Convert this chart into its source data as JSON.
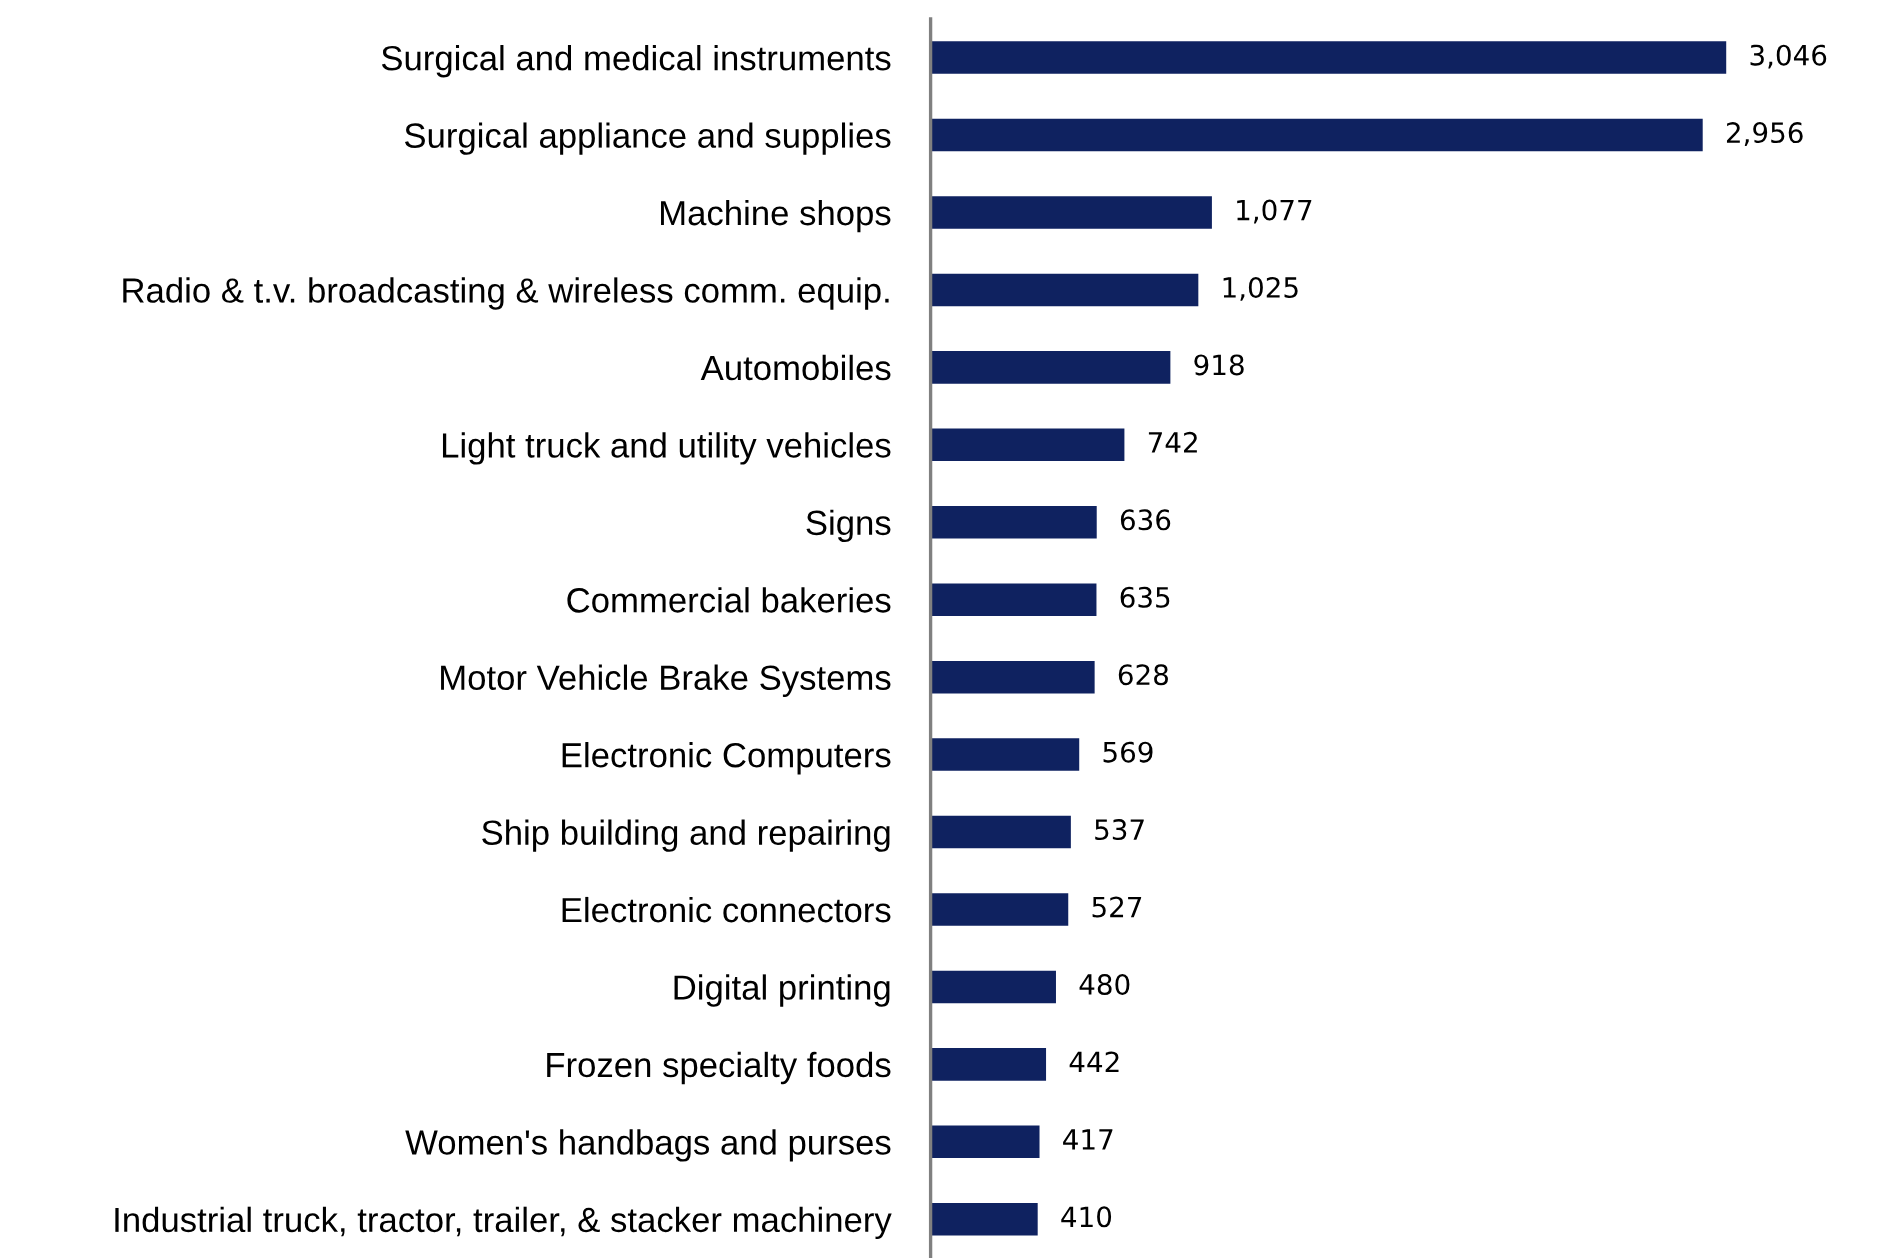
{
  "chart_data": {
    "type": "bar",
    "orientation": "horizontal",
    "categories": [
      "Surgical and medical instruments",
      "Surgical appliance and supplies",
      "Machine shops",
      "Radio & t.v. broadcasting & wireless comm. equip.",
      "Automobiles",
      "Light truck and utility vehicles",
      "Signs",
      "Commercial bakeries",
      "Motor Vehicle Brake Systems",
      "Electronic Computers",
      "Ship building and repairing",
      "Electronic connectors",
      "Digital printing",
      "Frozen specialty foods",
      "Women's handbags and purses",
      "Industrial truck, tractor, trailer, & stacker machinery"
    ],
    "values": [
      3046,
      2956,
      1077,
      1025,
      918,
      742,
      636,
      635,
      628,
      569,
      537,
      527,
      480,
      442,
      417,
      410
    ],
    "value_labels": [
      "3,046",
      "2,956",
      "1,077",
      "1,025",
      "918",
      "742",
      "636",
      "635",
      "628",
      "569",
      "537",
      "527",
      "480",
      "442",
      "417",
      "410"
    ],
    "color": "#0f2260",
    "grid": false,
    "legend": false
  }
}
